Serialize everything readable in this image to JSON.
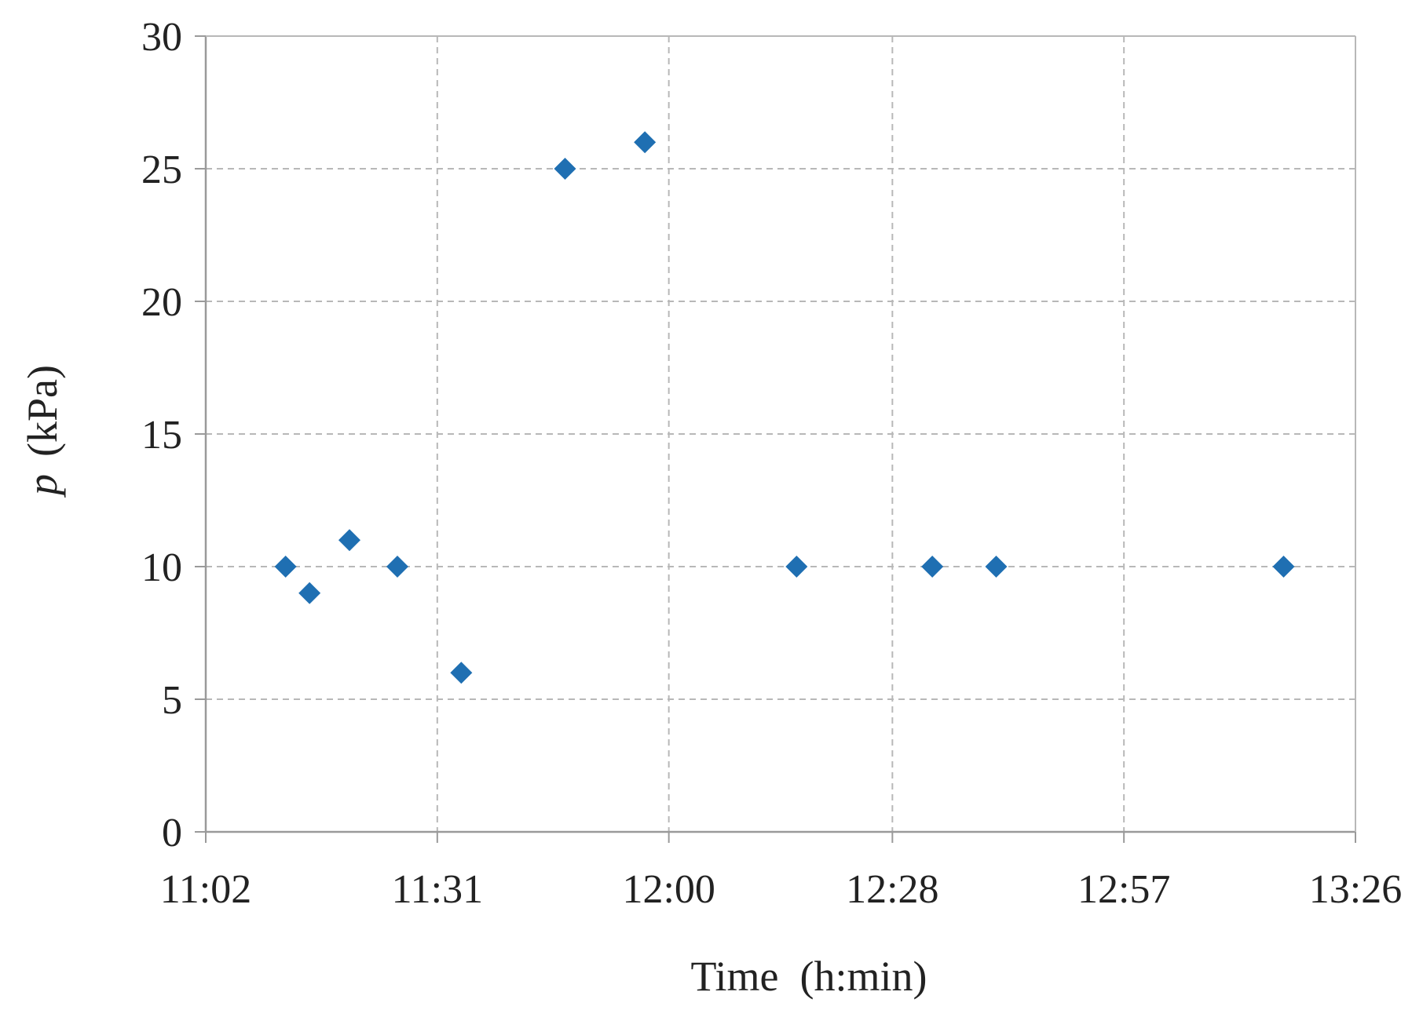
{
  "chart_data": {
    "type": "scatter",
    "title": "",
    "xlabel": "Time  (h:min)",
    "ylabel_symbol": "p",
    "ylabel_unit": "(kPa)",
    "x_ticks": [
      "11:02",
      "11:31",
      "12:00",
      "12:28",
      "12:57",
      "13:26"
    ],
    "y_ticks": [
      "0",
      "5",
      "10",
      "15",
      "20",
      "25",
      "30"
    ],
    "xlim": [
      "11:02",
      "13:26"
    ],
    "ylim": [
      0,
      30
    ],
    "grid": true,
    "legend": "none",
    "marker": "diamond",
    "marker_color": "#1F6FB2",
    "series": [
      {
        "x": [
          "11:12",
          "11:15",
          "11:20",
          "11:26",
          "11:34",
          "11:47",
          "11:57",
          "12:16",
          "12:33",
          "12:41",
          "13:17"
        ],
        "y": [
          10,
          9,
          11,
          10,
          6,
          25,
          26,
          10,
          10,
          10,
          10
        ]
      }
    ]
  }
}
